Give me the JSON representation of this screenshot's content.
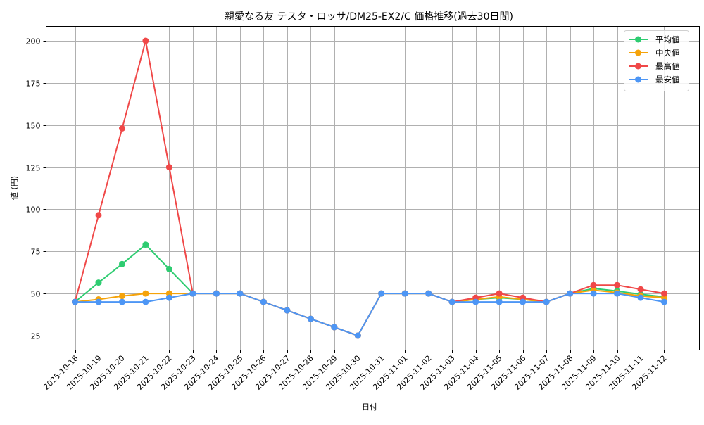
{
  "chart_data": {
    "type": "line",
    "title": "親愛なる友 テスタ・ロッサ/DM25-EX2/C 価格推移(過去30日間)",
    "xlabel": "日付",
    "ylabel": "値 (円)",
    "ylim": [
      16.5,
      208.5
    ],
    "yticks": [
      25,
      50,
      75,
      100,
      125,
      150,
      175,
      200
    ],
    "grid": true,
    "legend_position": "upper right",
    "categories": [
      "2025-10-18",
      "2025-10-19",
      "2025-10-20",
      "2025-10-21",
      "2025-10-22",
      "2025-10-23",
      "2025-10-24",
      "2025-10-25",
      "2025-10-26",
      "2025-10-27",
      "2025-10-28",
      "2025-10-29",
      "2025-10-30",
      "2025-10-31",
      "2025-11-01",
      "2025-11-02",
      "2025-11-03",
      "2025-11-04",
      "2025-11-05",
      "2025-11-06",
      "2025-11-07",
      "2025-11-08",
      "2025-11-09",
      "2025-11-10",
      "2025-11-11",
      "2025-11-12"
    ],
    "series": [
      {
        "name": "平均値",
        "color": "#2ecc71",
        "values": [
          45,
          56.5,
          67.5,
          79,
          64.5,
          50,
          50,
          50,
          45,
          40,
          35,
          30,
          25,
          50,
          50,
          50,
          45,
          46.5,
          47.5,
          46.5,
          45,
          50,
          53,
          51.5,
          49.5,
          48
        ]
      },
      {
        "name": "中央値",
        "color": "#f5a30a",
        "values": [
          45,
          46.5,
          48.5,
          50,
          50,
          50,
          50,
          50,
          45,
          40,
          35,
          30,
          25,
          50,
          50,
          50,
          45,
          46.5,
          48,
          46.5,
          45,
          50,
          52,
          50.5,
          48.5,
          47.5
        ]
      },
      {
        "name": "最高値",
        "color": "#f04848",
        "values": [
          45,
          96.5,
          148,
          200,
          125,
          50,
          50,
          50,
          45,
          40,
          35,
          30,
          25,
          50,
          50,
          50,
          45,
          47.5,
          50,
          47.5,
          45,
          50,
          55,
          55,
          52.5,
          50
        ]
      },
      {
        "name": "最安値",
        "color": "#4d96f5",
        "values": [
          45,
          45,
          45,
          45,
          47.5,
          50,
          50,
          50,
          45,
          40,
          35,
          30,
          25,
          50,
          50,
          50,
          45,
          45,
          45,
          45,
          45,
          50,
          50,
          50,
          47.5,
          45
        ]
      }
    ]
  }
}
